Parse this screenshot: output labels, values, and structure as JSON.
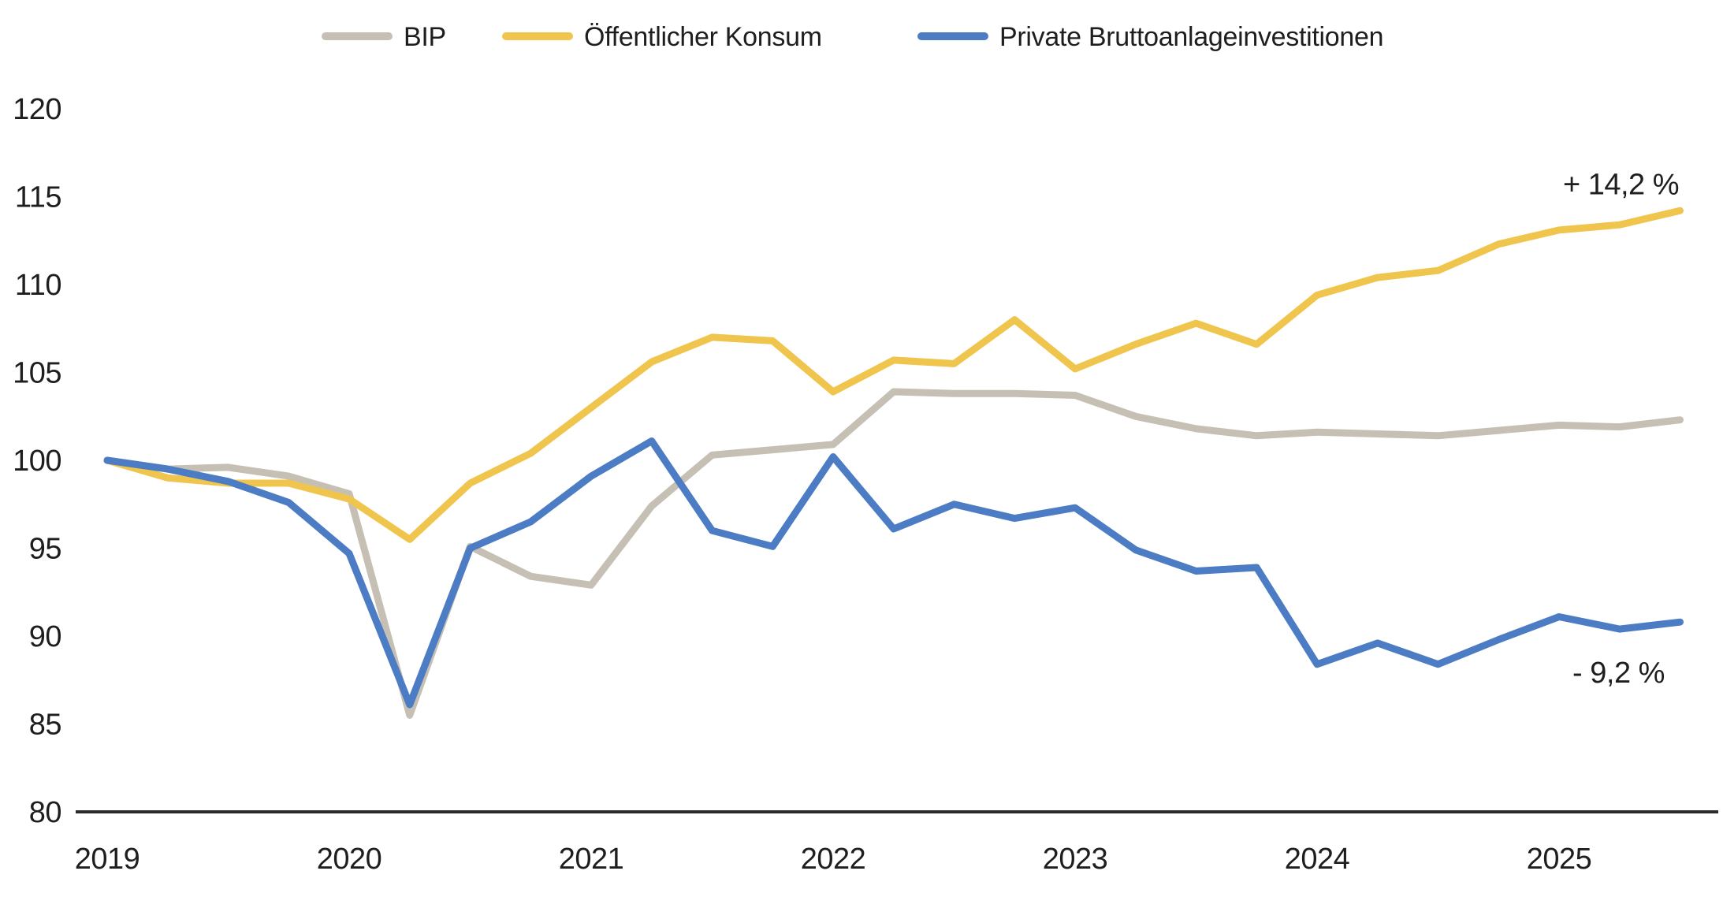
{
  "chart_data": {
    "type": "line",
    "title": "",
    "xlabel": "",
    "ylabel": "",
    "ylim": [
      80,
      120
    ],
    "y_ticks": [
      120,
      115,
      110,
      105,
      100,
      95,
      90,
      85,
      80
    ],
    "x_axis_labels": [
      "2019",
      "2020",
      "2021",
      "2022",
      "2023",
      "2024",
      "2025"
    ],
    "x_labels": [
      "2019 Q1",
      "2019 Q2",
      "2019 Q3",
      "2019 Q4",
      "2020 Q1",
      "2020 Q2",
      "2020 Q3",
      "2020 Q4",
      "2021 Q1",
      "2021 Q2",
      "2021 Q3",
      "2021 Q4",
      "2022 Q1",
      "2022 Q2",
      "2022 Q3",
      "2022 Q4",
      "2023 Q1",
      "2023 Q2",
      "2023 Q3",
      "2023 Q4",
      "2024 Q1",
      "2024 Q2",
      "2024 Q3",
      "2024 Q4",
      "2025 Q1",
      "2025 Q2",
      "2025 Q3"
    ],
    "grid": false,
    "legend_position": "top",
    "series": [
      {
        "name": "BIP",
        "color": "#C5C0B3",
        "values": [
          100.0,
          99.5,
          99.6,
          99.1,
          98.1,
          85.5,
          95.1,
          93.4,
          92.9,
          97.4,
          100.3,
          100.6,
          100.9,
          103.9,
          103.8,
          103.8,
          103.7,
          102.5,
          101.8,
          101.4,
          101.6,
          101.5,
          101.4,
          101.7,
          102.0,
          101.9,
          102.3
        ]
      },
      {
        "name": "Öffentlicher Konsum",
        "color": "#F0C54E",
        "values": [
          100.0,
          99.0,
          98.7,
          98.7,
          97.8,
          95.5,
          98.7,
          100.4,
          103.0,
          105.6,
          107.0,
          106.8,
          103.9,
          105.7,
          105.5,
          108.0,
          105.2,
          106.6,
          107.8,
          106.6,
          109.4,
          110.4,
          110.8,
          112.3,
          113.1,
          113.4,
          114.2
        ]
      },
      {
        "name": "Private Bruttoanlageinvestitionen",
        "color": "#4C7CC4",
        "values": [
          100.0,
          99.5,
          98.8,
          97.6,
          94.7,
          86.1,
          95.0,
          96.5,
          99.1,
          101.1,
          96.0,
          95.1,
          100.2,
          96.1,
          97.5,
          96.7,
          97.3,
          94.9,
          93.7,
          93.9,
          88.4,
          89.6,
          88.4,
          89.8,
          91.1,
          90.4,
          90.8
        ]
      }
    ],
    "annotations": [
      {
        "text": "+ 14,2 %",
        "series": "Öffentlicher Konsum",
        "placement": "above-line-end"
      },
      {
        "text": "- 9,2 %",
        "series": "Private Bruttoanlageinvestitionen",
        "placement": "below-line-end"
      }
    ],
    "axis_color": "#2b2b2b",
    "text_color": "#1e1e1e"
  }
}
